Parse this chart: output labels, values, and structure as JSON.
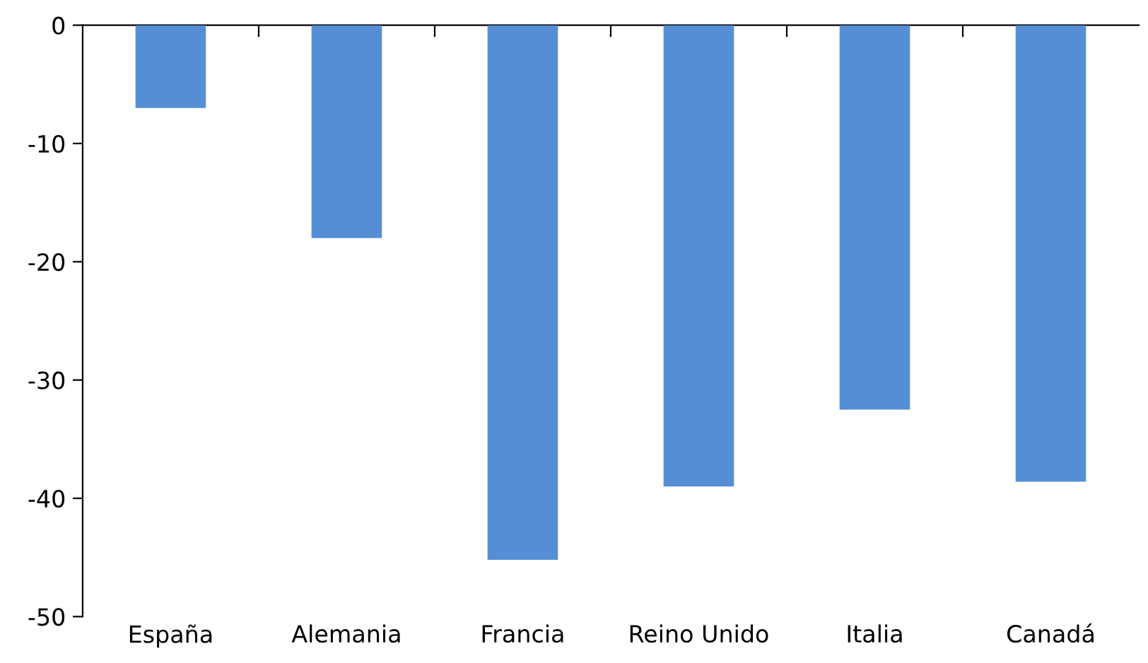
{
  "chart_data": {
    "type": "bar",
    "categories": [
      "España",
      "Alemania",
      "Francia",
      "Reino Unido",
      "Italia",
      "Canadá"
    ],
    "values": [
      -7,
      -18,
      -45.2,
      -39,
      -32.5,
      -38.6
    ],
    "color": "#558ed5",
    "ylim": [
      -50,
      0
    ],
    "yticks": [
      -50,
      -40,
      -30,
      -20,
      -10,
      0
    ],
    "grid": false,
    "legend": false
  }
}
